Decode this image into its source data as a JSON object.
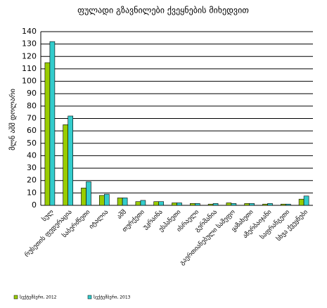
{
  "chart_data": {
    "type": "bar",
    "title": "ფულადი გზავნილები ქვეყნების მიხედვით",
    "y_label": "მლნ აშშ დოლარი",
    "categories": [
      "სულ",
      "რუსეთის ფედერაცია",
      "საბერძნეთი",
      "იტალია",
      "აშშ",
      "თურქეთი",
      "უკრაინა",
      "ესპანეთი",
      "ისრაელი",
      "გერმანია",
      "გაერთიანებული სამეფო",
      "ყაზახეთი",
      "აზერბაიჯანი",
      "საფრანგეთი",
      "სხვა ქვეყნები"
    ],
    "series": [
      {
        "name": "სექტემბერი, 2012",
        "color": "#99cc00",
        "values": [
          115,
          65,
          14,
          8,
          6,
          3,
          3,
          2,
          1.5,
          1,
          2,
          1.5,
          1,
          1,
          5
        ]
      },
      {
        "name": "სექტემბერი, 2013",
        "color": "#33cccc",
        "values": [
          132,
          72,
          19,
          9,
          6,
          4,
          3,
          2,
          1.5,
          1.5,
          1.5,
          1.5,
          1.5,
          1,
          7.5
        ]
      }
    ],
    "ylim": [
      0,
      140
    ],
    "yticks": [
      0,
      10,
      20,
      30,
      40,
      50,
      60,
      70,
      80,
      90,
      100,
      110,
      120,
      130,
      140
    ],
    "grid": true
  }
}
